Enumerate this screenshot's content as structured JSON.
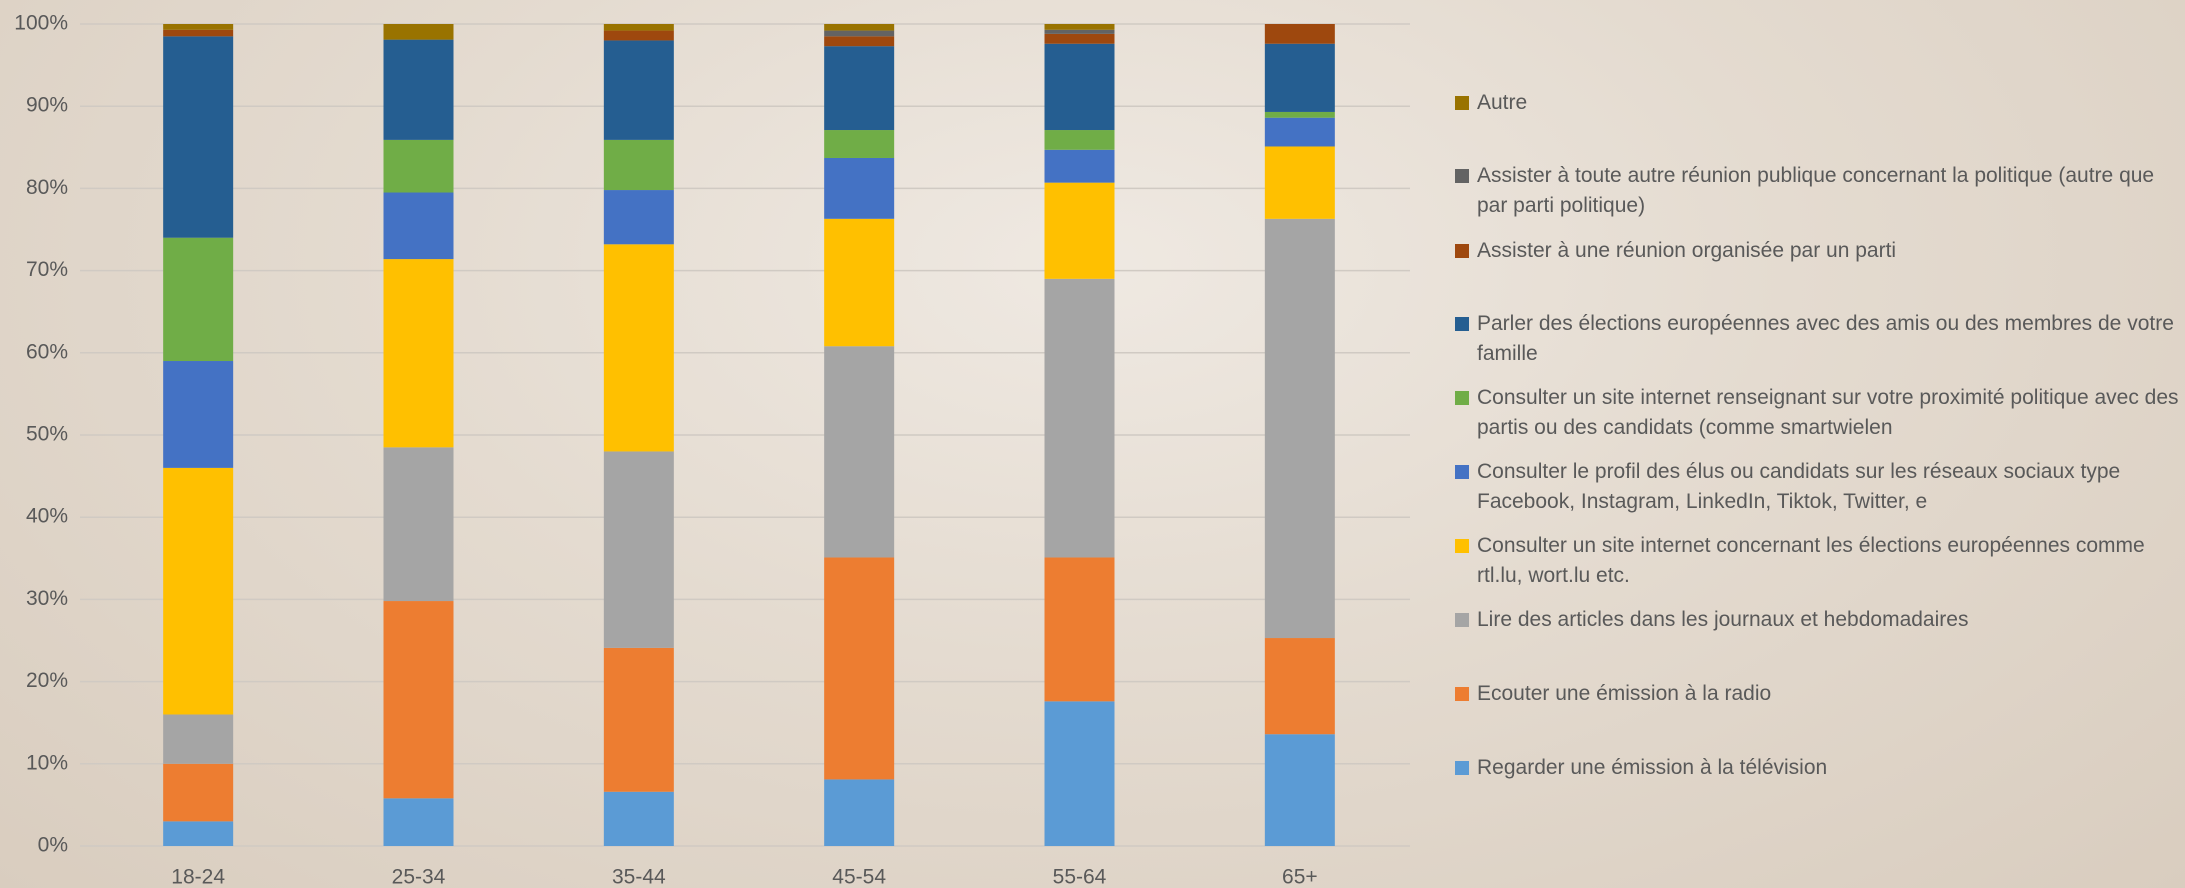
{
  "chart_data": {
    "type": "stacked_bar",
    "categories": [
      "18-24",
      "25-34",
      "35-44",
      "45-54",
      "55-64",
      "65+"
    ],
    "ylim": [
      0,
      100
    ],
    "yticks": [
      {
        "value": 0,
        "label": "0%"
      },
      {
        "value": 10,
        "label": "10%"
      },
      {
        "value": 20,
        "label": "20%"
      },
      {
        "value": 30,
        "label": "30%"
      },
      {
        "value": 40,
        "label": "40%"
      },
      {
        "value": 50,
        "label": "50%"
      },
      {
        "value": 60,
        "label": "60%"
      },
      {
        "value": 70,
        "label": "70%"
      },
      {
        "value": 80,
        "label": "80%"
      },
      {
        "value": 90,
        "label": "90%"
      },
      {
        "value": 100,
        "label": "100%"
      }
    ],
    "grid": true,
    "legend": "right",
    "series": [
      {
        "name": "Regarder une émission à la télévision",
        "color": "#5b9bd5",
        "values": [
          3,
          5.8,
          6.6,
          8.1,
          17.6,
          13.6
        ]
      },
      {
        "name": "Ecouter une émission à la radio",
        "color": "#ed7d31",
        "values": [
          7,
          24,
          17.5,
          27,
          17.5,
          11.7
        ]
      },
      {
        "name": "Lire des articles dans les journaux et hebdomadaires",
        "color": "#a5a5a5",
        "values": [
          6,
          18.7,
          23.9,
          25.7,
          33.9,
          51
        ]
      },
      {
        "name": "Consulter un site internet concernant les élections européennes comme rtl.lu, wort.lu etc.",
        "color": "#ffc000",
        "values": [
          30,
          22.9,
          25.2,
          15.5,
          11.7,
          8.8
        ]
      },
      {
        "name": "Consulter le profil des élus ou candidats sur les réseaux sociaux type Facebook, Instagram, LinkedIn, Tiktok, Twitter, e",
        "color": "#4472c4",
        "values": [
          13,
          8.1,
          6.6,
          7.4,
          4,
          3.5
        ]
      },
      {
        "name": "Consulter un site internet renseignant sur votre proximité politique avec des partis ou des candidats (comme smartwielen",
        "color": "#70ad47",
        "values": [
          15,
          6.4,
          6.1,
          3.4,
          2.4,
          0.7
        ]
      },
      {
        "name": "Parler des élections européennes avec des amis ou des membres de votre famille",
        "color": "#255e91",
        "values": [
          24.5,
          12.2,
          12.1,
          10.2,
          10.5,
          8.3
        ]
      },
      {
        "name": "Assister à une réunion organisée par un parti",
        "color": "#9e480e",
        "values": [
          0.8,
          0,
          1.2,
          1.2,
          1.2,
          2.4
        ]
      },
      {
        "name": "Assister à toute autre réunion publique concernant la politique (autre que par parti politique)",
        "color": "#636363",
        "values": [
          0,
          0,
          0,
          0.7,
          0.5,
          0
        ]
      },
      {
        "name": "Autre",
        "color": "#997300",
        "values": [
          0.7,
          1.9,
          0.8,
          0.8,
          0.7,
          0
        ]
      }
    ]
  }
}
